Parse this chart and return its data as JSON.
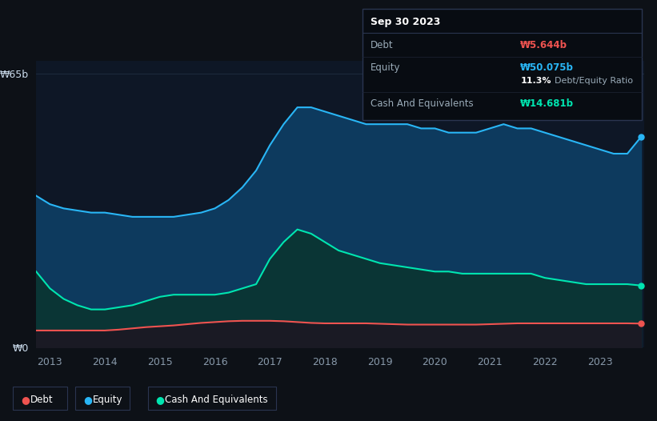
{
  "background_color": "#0d1117",
  "plot_bg_color": "#0e1726",
  "tooltip": {
    "title": "Sep 30 2023",
    "debt_label": "Debt",
    "debt_value": "₩5.644b",
    "equity_label": "Equity",
    "equity_value": "₩50.075b",
    "ratio_pct": "11.3%",
    "ratio_text": "Debt/Equity Ratio",
    "cash_label": "Cash And Equivalents",
    "cash_value": "₩14.681b"
  },
  "equity_color": "#29b6f6",
  "equity_fill": "#0d3a5e",
  "debt_color": "#ef5350",
  "debt_fill": "#1a1a24",
  "cash_color": "#00e5b0",
  "cash_fill": "#0a3535",
  "grid_color": "#1e2d40",
  "y_label_top": "₩65b",
  "y_label_bottom": "₩0",
  "years": [
    2012.75,
    2013.0,
    2013.25,
    2013.5,
    2013.75,
    2014.0,
    2014.25,
    2014.5,
    2014.75,
    2015.0,
    2015.25,
    2015.5,
    2015.75,
    2016.0,
    2016.25,
    2016.5,
    2016.75,
    2017.0,
    2017.25,
    2017.5,
    2017.75,
    2018.0,
    2018.25,
    2018.5,
    2018.75,
    2019.0,
    2019.25,
    2019.5,
    2019.75,
    2020.0,
    2020.25,
    2020.5,
    2020.75,
    2021.0,
    2021.25,
    2021.5,
    2021.75,
    2022.0,
    2022.25,
    2022.5,
    2022.75,
    2023.0,
    2023.25,
    2023.5,
    2023.75
  ],
  "equity": [
    36,
    34,
    33,
    32.5,
    32,
    32,
    31.5,
    31,
    31,
    31,
    31,
    31.5,
    32,
    33,
    35,
    38,
    42,
    48,
    53,
    57,
    57,
    56,
    55,
    54,
    53,
    53,
    53,
    53,
    52,
    52,
    51,
    51,
    51,
    52,
    53,
    52,
    52,
    51,
    50,
    49,
    48,
    47,
    46,
    46,
    50
  ],
  "debt": [
    4.0,
    4.0,
    4.0,
    4.0,
    4.0,
    4.0,
    4.2,
    4.5,
    4.8,
    5.0,
    5.2,
    5.5,
    5.8,
    6.0,
    6.2,
    6.3,
    6.3,
    6.3,
    6.2,
    6.0,
    5.8,
    5.7,
    5.7,
    5.7,
    5.7,
    5.6,
    5.5,
    5.4,
    5.4,
    5.4,
    5.4,
    5.4,
    5.4,
    5.5,
    5.6,
    5.7,
    5.7,
    5.7,
    5.7,
    5.7,
    5.7,
    5.7,
    5.7,
    5.7,
    5.644
  ],
  "cash": [
    18,
    14,
    11.5,
    10,
    9,
    9,
    9.5,
    10,
    11,
    12,
    12.5,
    12.5,
    12.5,
    12.5,
    13,
    14,
    15,
    21,
    25,
    28,
    27,
    25,
    23,
    22,
    21,
    20,
    19.5,
    19,
    18.5,
    18,
    18,
    17.5,
    17.5,
    17.5,
    17.5,
    17.5,
    17.5,
    16.5,
    16,
    15.5,
    15,
    15,
    15,
    15,
    14.681
  ]
}
